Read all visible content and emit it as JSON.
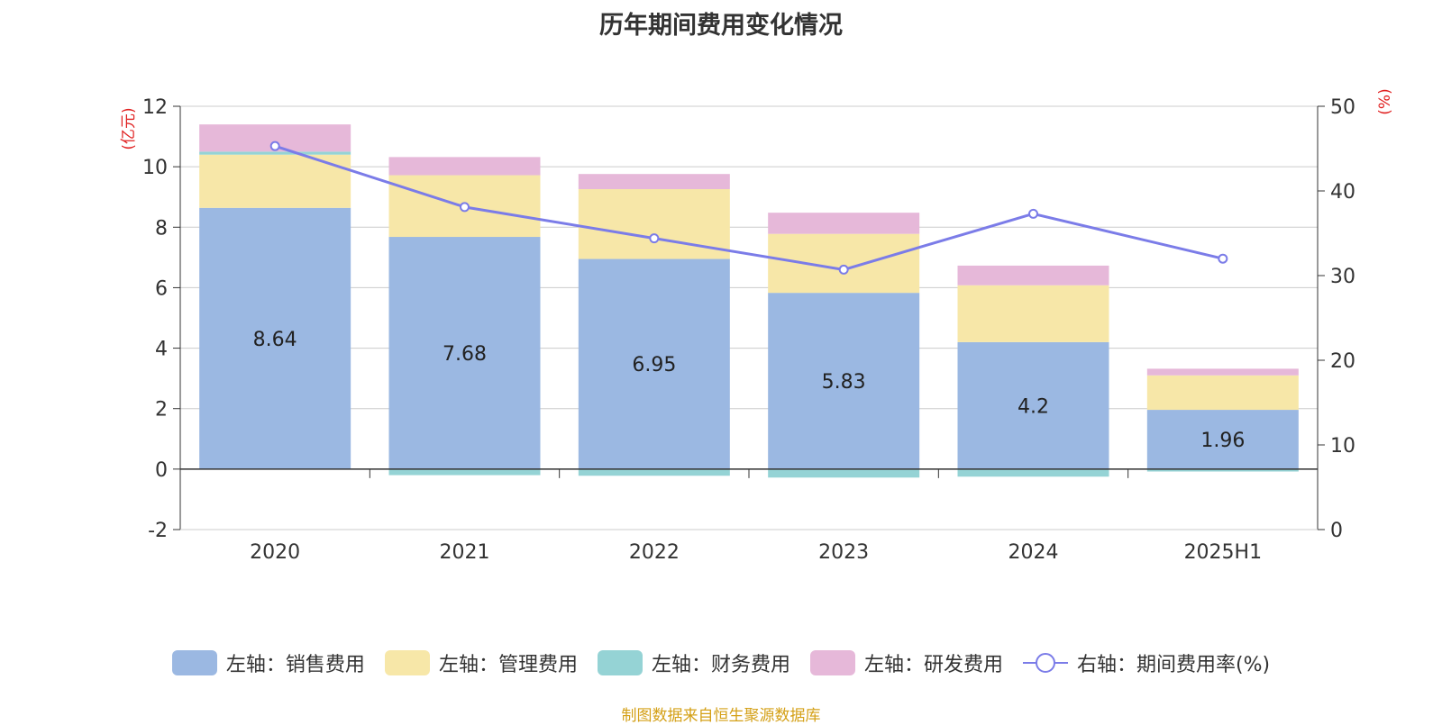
{
  "chart_data": {
    "type": "bar",
    "title": "历年期间费用变化情况",
    "categories": [
      "2020",
      "2021",
      "2022",
      "2023",
      "2024",
      "2025H1"
    ],
    "series": [
      {
        "name": "左轴：销售费用",
        "axis": "left",
        "stack": true,
        "color": "#9bb8e2",
        "values": [
          8.64,
          7.68,
          6.95,
          5.83,
          4.2,
          1.96
        ],
        "data_labels": [
          "8.64",
          "7.68",
          "6.95",
          "5.83",
          "4.2",
          "1.96"
        ]
      },
      {
        "name": "左轴：管理费用",
        "axis": "left",
        "stack": true,
        "color": "#f7e7a8",
        "values": [
          1.76,
          2.04,
          2.31,
          1.95,
          1.88,
          1.14
        ]
      },
      {
        "name": "左轴：财务费用",
        "axis": "left",
        "stack": true,
        "color": "#95d3d5",
        "values": [
          0.1,
          -0.2,
          -0.22,
          -0.28,
          -0.25,
          -0.08
        ]
      },
      {
        "name": "左轴：研发费用",
        "axis": "left",
        "stack": true,
        "color": "#e6b8d9",
        "values": [
          0.9,
          0.6,
          0.5,
          0.7,
          0.65,
          0.22
        ]
      },
      {
        "name": "右轴：期间费用率(%)",
        "axis": "right",
        "type": "line",
        "color": "#7b7ce8",
        "values": [
          45.3,
          38.1,
          34.4,
          30.7,
          37.3,
          32.0
        ]
      }
    ],
    "left_axis": {
      "unit_label": "(亿元)",
      "ylim": [
        -2,
        12
      ],
      "ticks": [
        -2,
        0,
        2,
        4,
        6,
        8,
        10,
        12
      ]
    },
    "right_axis": {
      "unit_label": "(%)",
      "ylim": [
        0,
        50
      ],
      "ticks": [
        0,
        10,
        20,
        30,
        40,
        50
      ]
    },
    "grid": true,
    "legend_position": "bottom"
  },
  "source_note": "制图数据来自恒生聚源数据库"
}
